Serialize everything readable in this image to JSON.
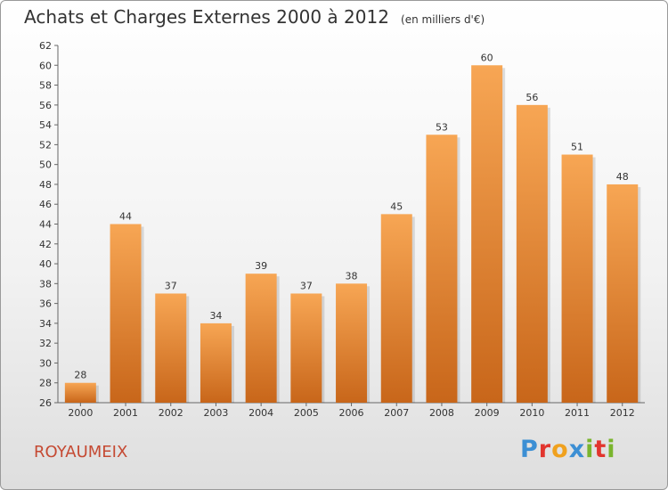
{
  "header": {
    "title": "Achats et Charges Externes 2000 à 2012",
    "unit": "(en milliers d'€)"
  },
  "footer": {
    "commune": "ROYAUMEIX",
    "brand_letters": [
      "P",
      "r",
      "o",
      "x",
      "i",
      "t",
      "i"
    ]
  },
  "colors": {
    "bar_light": "#f7a654",
    "bar_dark": "#c8661a",
    "commune": "#c54a33",
    "brand": [
      "#3c8fd4",
      "#e2352e",
      "#f0a11e",
      "#3c8fd4",
      "#7ab52e",
      "#e2352e",
      "#7ab52e"
    ]
  },
  "chart_data": {
    "type": "bar",
    "title": "Achats et Charges Externes 2000 à 2012",
    "subtitle": "(en milliers d'€)",
    "categories": [
      "2000",
      "2001",
      "2002",
      "2003",
      "2004",
      "2005",
      "2006",
      "2007",
      "2008",
      "2009",
      "2010",
      "2011",
      "2012"
    ],
    "values": [
      28,
      44,
      37,
      34,
      39,
      37,
      38,
      45,
      53,
      60,
      56,
      51,
      48
    ],
    "ylim": [
      26,
      62
    ],
    "ytick_step": 2,
    "grid": false,
    "xlabel": "",
    "ylabel": ""
  }
}
